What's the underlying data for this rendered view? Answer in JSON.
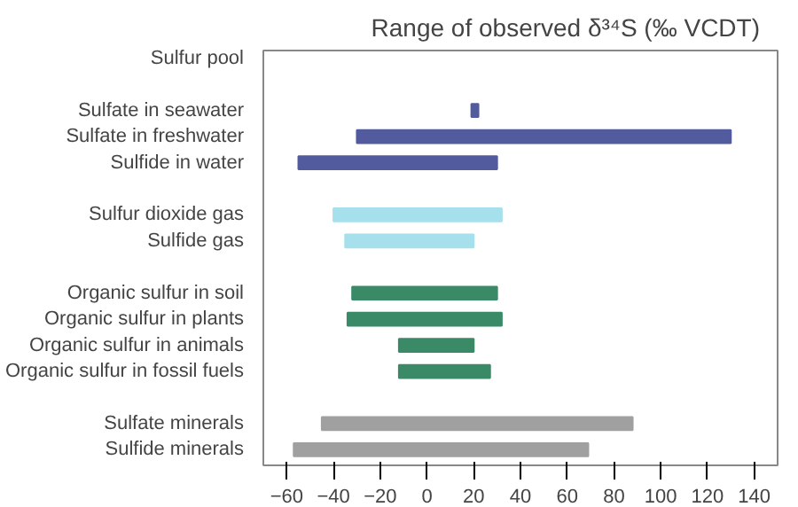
{
  "chart_data": {
    "type": "bar",
    "orientation": "horizontal",
    "title": "Range of observed δ³⁴S (‰ VCDT)",
    "ylabel": "Sulfur pool",
    "categories": [
      "Sulfate in seawater",
      "Sulfate in freshwater",
      "Sulfide in water",
      null,
      "Sulfur dioxide gas",
      "Sulfide gas",
      null,
      "Organic sulfur in soil",
      "Organic sulfur in plants",
      "Organic sulfur in animals",
      "Organic sulfur in fossil fuels",
      null,
      "Sulfate minerals",
      "Sulfide minerals"
    ],
    "base": [
      19,
      -30,
      -55,
      null,
      -40,
      -35,
      null,
      -32,
      -34,
      -12,
      -12,
      null,
      -45,
      -57
    ],
    "values": [
      3,
      160,
      85,
      null,
      72,
      55,
      null,
      62,
      66,
      32,
      39,
      null,
      133,
      126
    ],
    "colors": [
      "#525b9e",
      "#525b9e",
      "#525b9e",
      null,
      "#a6e0ec",
      "#a6e0ec",
      null,
      "#3a8a68",
      "#3a8a68",
      "#3a8a68",
      "#3a8a68",
      null,
      "#a0a0a0",
      "#a0a0a0"
    ],
    "xlim": [
      -70,
      150
    ],
    "xticks": [
      -60,
      -40,
      -20,
      0,
      20,
      40,
      60,
      80,
      100,
      120,
      140
    ],
    "grid": false
  }
}
